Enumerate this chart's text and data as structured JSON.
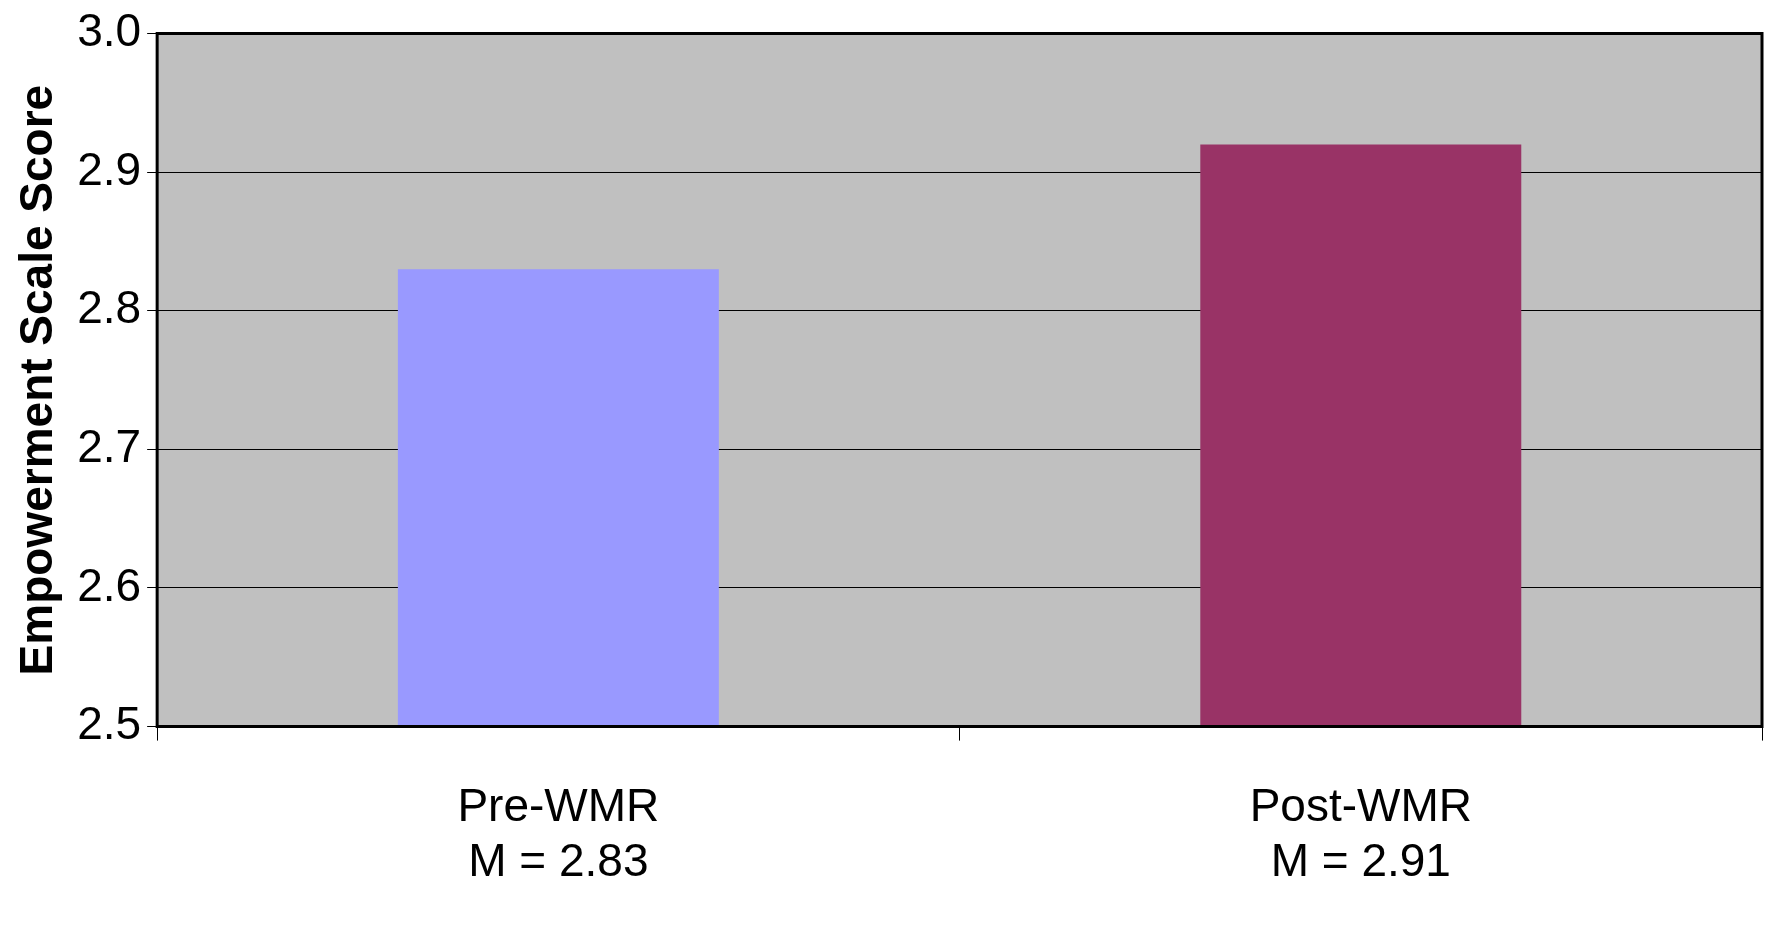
{
  "chart_data": {
    "type": "bar",
    "ylabel": "Empowerment Scale Score",
    "categories": [
      "Pre-WMR\nM = 2.83",
      "Post-WMR\nM = 2.91"
    ],
    "values": [
      2.83,
      2.92
    ],
    "colors": [
      "#9999ff",
      "#993366"
    ],
    "ylim": [
      2.5,
      3.0
    ],
    "yticks": [
      {
        "value": 2.5,
        "label": "2.5"
      },
      {
        "value": 2.6,
        "label": "2.6"
      },
      {
        "value": 2.7,
        "label": "2.7"
      },
      {
        "value": 2.8,
        "label": "2.8"
      },
      {
        "value": 2.9,
        "label": "2.9"
      },
      {
        "value": 3.0,
        "label": "3.0"
      }
    ],
    "grid": "y",
    "legend": false
  }
}
